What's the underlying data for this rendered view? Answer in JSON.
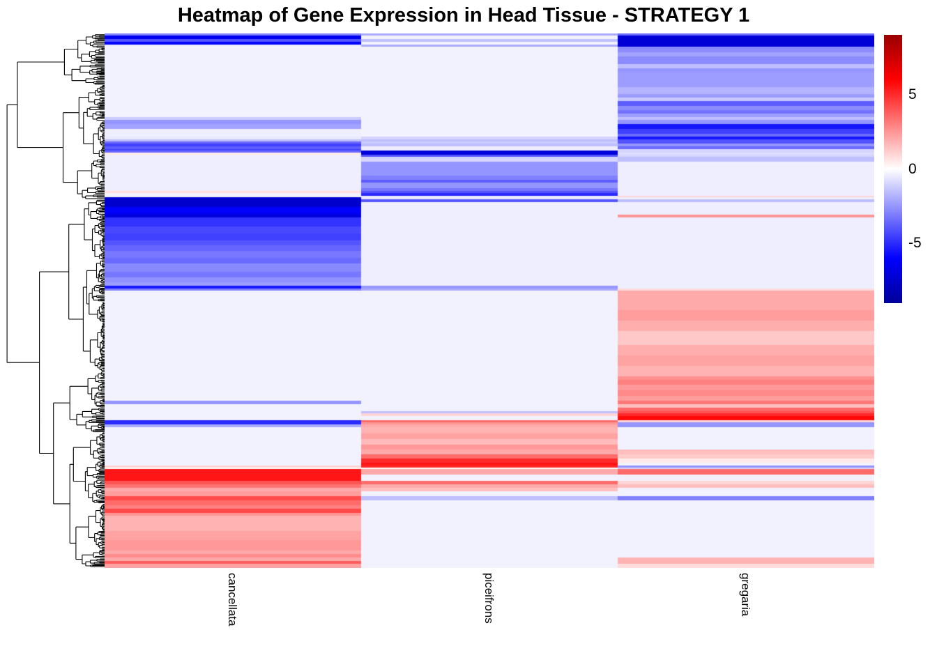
{
  "title": "Heatmap of Gene Expression in Head Tissue - STRATEGY 1",
  "columns": [
    "cancellata",
    "piceifrons",
    "gregaria"
  ],
  "legend": {
    "ticks": [
      {
        "label": "5",
        "value": 5
      },
      {
        "label": "0",
        "value": 0
      },
      {
        "label": "-5",
        "value": -5
      }
    ],
    "vmin": -9,
    "vmax": 9
  },
  "colors": {
    "pos_extreme": "#990000",
    "pos": "#ff0000",
    "zero": "#ffffff",
    "neg": "#0000ff",
    "neg_extreme": "#000099",
    "dendrogram": "#000000",
    "background": "#ffffff"
  },
  "chart_data": {
    "type": "heatmap",
    "title": "Heatmap of Gene Expression in Head Tissue - STRATEGY 1",
    "x_categories": [
      "cancellata",
      "piceifrons",
      "gregaria"
    ],
    "y_axis": "genes (hierarchically clustered rows, labels not shown)",
    "row_dendrogram": true,
    "colorbar": {
      "tick_values": [
        5,
        0,
        -5
      ],
      "range": [
        -9,
        9
      ],
      "palette": "blue-white-red"
    },
    "bands_format": "[row_band_height_px, value_cancellata, value_piceifrons, value_gregaria]",
    "bands": [
      [
        3,
        -3,
        -2,
        -3.5
      ],
      [
        5,
        -6.5,
        -0.3,
        -7.2
      ],
      [
        4,
        -4,
        -1.5,
        -7.2
      ],
      [
        4,
        -6,
        -0.3,
        -7.2
      ],
      [
        3,
        -0.4,
        -2,
        -7.2
      ],
      [
        8,
        -0.3,
        -0.3,
        -2.7
      ],
      [
        6,
        -0.3,
        -0.3,
        -2.2
      ],
      [
        11,
        -0.3,
        -0.3,
        -2.7
      ],
      [
        6,
        -0.3,
        -0.3,
        -1.5
      ],
      [
        6,
        -0.3,
        -0.3,
        -2.5
      ],
      [
        21,
        -0.3,
        -0.3,
        -2.3
      ],
      [
        10,
        -0.3,
        -0.3,
        -1.8
      ],
      [
        5,
        -0.3,
        -0.3,
        -2.3
      ],
      [
        5,
        -0.3,
        -0.3,
        -1.3
      ],
      [
        7,
        -0.3,
        -0.3,
        -3.8
      ],
      [
        6,
        -0.3,
        -0.3,
        -2.7
      ],
      [
        5,
        -0.3,
        -0.3,
        -3.3
      ],
      [
        5,
        -0.3,
        -0.3,
        -2.3
      ],
      [
        4,
        -1.2,
        -0.3,
        -1.5
      ],
      [
        6,
        -2.5,
        -0.3,
        -2.5
      ],
      [
        7,
        -2.2,
        -0.3,
        -5.5
      ],
      [
        7,
        -0.4,
        -0.3,
        -4.5
      ],
      [
        4,
        -0.4,
        -0.3,
        -3.5
      ],
      [
        4,
        -0.5,
        -1,
        -5.5
      ],
      [
        3,
        -1.5,
        -1.5,
        -4
      ],
      [
        3,
        -3.5,
        -1.2,
        -4
      ],
      [
        4,
        -4.5,
        -1.5,
        -2.5
      ],
      [
        4,
        -3.8,
        -0.4,
        -3.5
      ],
      [
        2,
        -4.5,
        -0.4,
        -1
      ],
      [
        3,
        -3.5,
        -7,
        -1
      ],
      [
        3,
        0.5,
        -7,
        -0.8
      ],
      [
        3,
        -0.4,
        -4,
        -1
      ],
      [
        7,
        -0.4,
        -1,
        -1.5
      ],
      [
        20,
        -0.4,
        -2.5,
        -0.4
      ],
      [
        6,
        -0.4,
        -3,
        -0.4
      ],
      [
        4,
        -0.4,
        -3.8,
        -0.4
      ],
      [
        8,
        -0.4,
        -2.5,
        -0.4
      ],
      [
        4,
        -0.4,
        -3.2,
        -0.4
      ],
      [
        3,
        0.8,
        -4,
        -0.4
      ],
      [
        4,
        -0.3,
        -5,
        -0.4
      ],
      [
        2,
        -0.3,
        -0.5,
        1
      ],
      [
        3,
        -7.5,
        -0.5,
        -0.4
      ],
      [
        4,
        -7.5,
        -4,
        -1.5
      ],
      [
        7,
        -7.5,
        -0.4,
        -0.4
      ],
      [
        8,
        -6,
        -0.4,
        -0.4
      ],
      [
        3,
        -6.5,
        -0.4,
        -0.4
      ],
      [
        4,
        -7,
        -0.4,
        2.5
      ],
      [
        13,
        -4.8,
        -0.4,
        -0.4
      ],
      [
        10,
        -4.3,
        -0.4,
        -0.4
      ],
      [
        10,
        -4.5,
        -0.4,
        -0.4
      ],
      [
        7,
        -4,
        -0.4,
        -0.4
      ],
      [
        8,
        -3.6,
        -0.4,
        -0.4
      ],
      [
        10,
        -3.2,
        -0.4,
        -0.4
      ],
      [
        8,
        -3.5,
        -0.4,
        -0.4
      ],
      [
        12,
        -2.8,
        -0.4,
        -0.4
      ],
      [
        8,
        -3.2,
        -0.4,
        -0.4
      ],
      [
        7,
        -2.6,
        -0.4,
        -0.4
      ],
      [
        5,
        -2.3,
        -0.4,
        -0.4
      ],
      [
        4,
        -5.5,
        -2.5,
        -0.4
      ],
      [
        3,
        -3,
        -2,
        0.8
      ],
      [
        28,
        -0.3,
        -0.3,
        2
      ],
      [
        15,
        -0.3,
        -0.3,
        2.3
      ],
      [
        15,
        -0.3,
        -0.3,
        1.9
      ],
      [
        20,
        -0.3,
        -0.3,
        1.3
      ],
      [
        15,
        -0.3,
        -0.3,
        1.9
      ],
      [
        15,
        -0.3,
        -0.3,
        2.2
      ],
      [
        15,
        -0.3,
        -0.3,
        1.8
      ],
      [
        5,
        -0.3,
        -0.3,
        2.6
      ],
      [
        7,
        -0.3,
        -0.3,
        3
      ],
      [
        8,
        -0.3,
        -0.3,
        2.4
      ],
      [
        8,
        -0.3,
        -0.3,
        2.8
      ],
      [
        7,
        -0.3,
        -0.3,
        2.3
      ],
      [
        5,
        -2.5,
        -0.3,
        3.2
      ],
      [
        5,
        -0.3,
        -0.3,
        1.5
      ],
      [
        5,
        -0.3,
        -0.3,
        3.5
      ],
      [
        3,
        -0.3,
        -1.5,
        4
      ],
      [
        4,
        -0.3,
        1,
        5
      ],
      [
        6,
        -0.3,
        -0.3,
        5.8
      ],
      [
        3,
        -5,
        3.5,
        1
      ],
      [
        3,
        -5,
        2.5,
        -2.5
      ],
      [
        4,
        -2,
        2,
        -2.5
      ],
      [
        9,
        -0.3,
        1.8,
        -0.3
      ],
      [
        8,
        -0.3,
        2.2,
        -0.3
      ],
      [
        8,
        -0.3,
        1.6,
        -0.3
      ],
      [
        7,
        -0.3,
        2.4,
        -0.3
      ],
      [
        7,
        -0.3,
        2,
        1.5
      ],
      [
        6,
        -0.3,
        3.5,
        1.2
      ],
      [
        6,
        -0.3,
        5,
        0.5
      ],
      [
        4,
        -0.3,
        5.5,
        -0.3
      ],
      [
        3,
        1,
        5,
        -2.5
      ],
      [
        2,
        0,
        0,
        -1
      ],
      [
        8,
        5.5,
        2,
        3.5
      ],
      [
        9,
        5.5,
        -0.3,
        -0.3
      ],
      [
        5,
        4,
        3.5,
        1
      ],
      [
        5,
        3.3,
        2,
        1.5
      ],
      [
        5,
        2,
        1.5,
        -0.3
      ],
      [
        7,
        2.3,
        -0.3,
        -0.3
      ],
      [
        6,
        4.2,
        -1.5,
        -3
      ],
      [
        7,
        3.5,
        -0.3,
        -0.3
      ],
      [
        5,
        3,
        -0.3,
        -0.3
      ],
      [
        6,
        4.3,
        -0.3,
        -0.3
      ],
      [
        4,
        2.5,
        -0.3,
        -0.3
      ],
      [
        22,
        1.8,
        -0.3,
        -0.3
      ],
      [
        13,
        2.2,
        -0.3,
        -0.3
      ],
      [
        15,
        2.4,
        -0.3,
        -0.3
      ],
      [
        5,
        2,
        -0.3,
        -0.3
      ],
      [
        5,
        2.7,
        -0.3,
        -0.3
      ],
      [
        5,
        2,
        -0.3,
        1.8
      ],
      [
        4,
        3.8,
        -0.3,
        1.8
      ],
      [
        6,
        2.2,
        -0.3,
        0.8
      ]
    ]
  }
}
